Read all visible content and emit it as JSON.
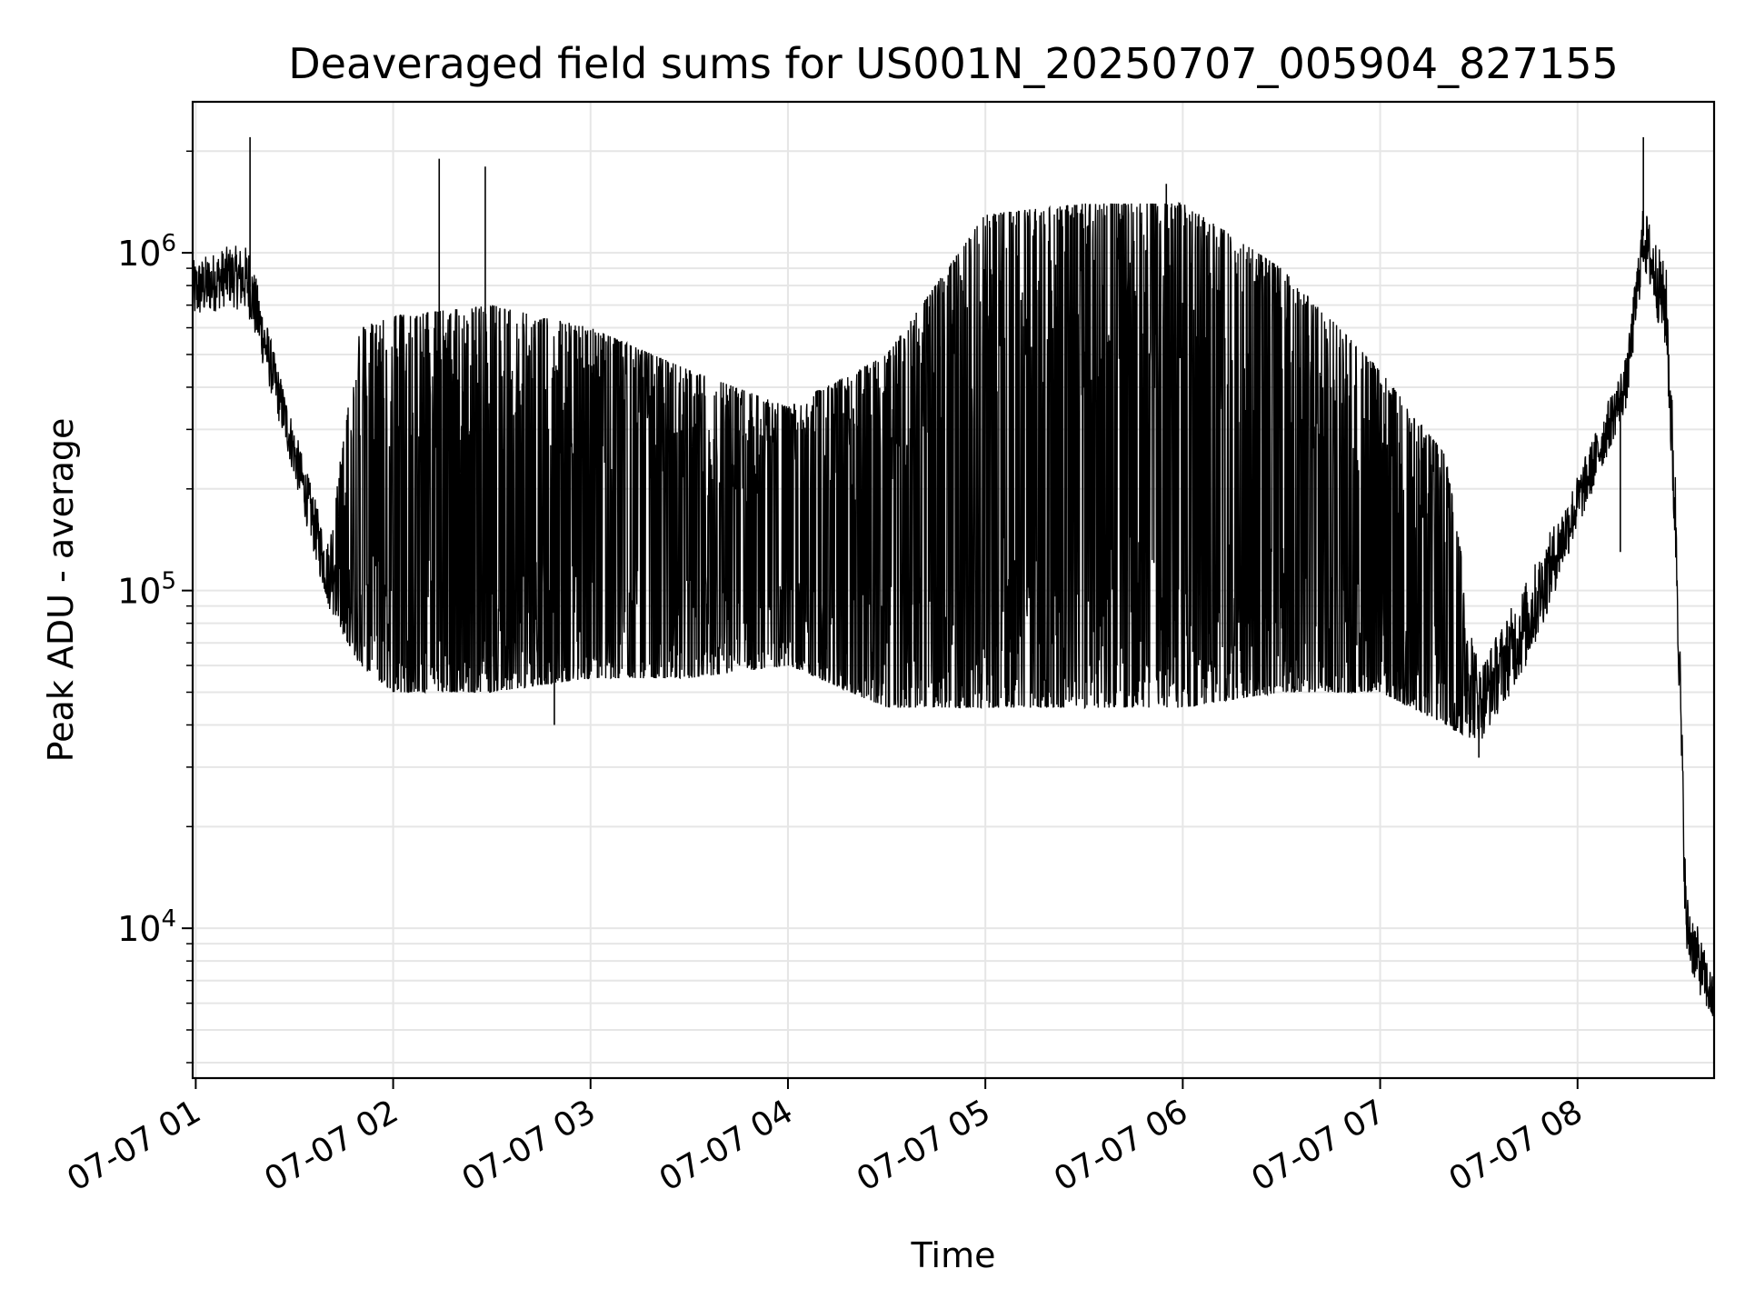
{
  "chart_data": {
    "type": "line",
    "title": "Deaveraged field sums for US001N_20250707_005904_827155",
    "xlabel": "Time",
    "ylabel": "Peak ADU - average",
    "yscale": "log",
    "ylim": [
      3600,
      2800000
    ],
    "xlim": [
      "2025-07-07T00:59:04",
      "2025-07-07T08:41:30"
    ],
    "x_ticks": [
      {
        "label": "07-07 01",
        "t": "2025-07-07T01:00:00"
      },
      {
        "label": "07-07 02",
        "t": "2025-07-07T02:00:00"
      },
      {
        "label": "07-07 03",
        "t": "2025-07-07T03:00:00"
      },
      {
        "label": "07-07 04",
        "t": "2025-07-07T04:00:00"
      },
      {
        "label": "07-07 05",
        "t": "2025-07-07T05:00:00"
      },
      {
        "label": "07-07 06",
        "t": "2025-07-07T06:00:00"
      },
      {
        "label": "07-07 07",
        "t": "2025-07-07T07:00:00"
      },
      {
        "label": "07-07 08",
        "t": "2025-07-07T08:00:00"
      }
    ],
    "y_ticks": [
      {
        "base": "10",
        "exp": "4",
        "value": 10000
      },
      {
        "base": "10",
        "exp": "5",
        "value": 100000
      },
      {
        "base": "10",
        "exp": "6",
        "value": 1000000
      }
    ],
    "grid": true,
    "line_color": "#000000",
    "grid_color": "#e6e6e6",
    "envelope": [
      {
        "t": "2025-07-07T00:59:04",
        "low": 620000,
        "high": 950000
      },
      {
        "t": "2025-07-07T01:10:00",
        "low": 700000,
        "high": 1050000
      },
      {
        "t": "2025-07-07T01:16:00",
        "low": 650000,
        "high": 1050000
      },
      {
        "t": "2025-07-07T01:24:00",
        "low": 350000,
        "high": 500000
      },
      {
        "t": "2025-07-07T01:32:00",
        "low": 180000,
        "high": 260000
      },
      {
        "t": "2025-07-07T01:40:00",
        "low": 90000,
        "high": 140000
      },
      {
        "t": "2025-07-07T01:50:00",
        "low": 60000,
        "high": 600000
      },
      {
        "t": "2025-07-07T02:00:00",
        "low": 50000,
        "high": 650000
      },
      {
        "t": "2025-07-07T02:30:00",
        "low": 50000,
        "high": 700000
      },
      {
        "t": "2025-07-07T03:00:00",
        "low": 55000,
        "high": 600000
      },
      {
        "t": "2025-07-07T03:30:00",
        "low": 55000,
        "high": 450000
      },
      {
        "t": "2025-07-07T04:00:00",
        "low": 60000,
        "high": 350000
      },
      {
        "t": "2025-07-07T04:30:00",
        "low": 45000,
        "high": 500000
      },
      {
        "t": "2025-07-07T05:00:00",
        "low": 45000,
        "high": 1300000
      },
      {
        "t": "2025-07-07T05:30:00",
        "low": 45000,
        "high": 1400000
      },
      {
        "t": "2025-07-07T06:00:00",
        "low": 45000,
        "high": 1400000
      },
      {
        "t": "2025-07-07T06:30:00",
        "low": 50000,
        "high": 900000
      },
      {
        "t": "2025-07-07T07:00:00",
        "low": 50000,
        "high": 450000
      },
      {
        "t": "2025-07-07T07:20:00",
        "low": 40000,
        "high": 250000
      },
      {
        "t": "2025-07-07T07:30:00",
        "low": 35000,
        "high": 60000
      },
      {
        "t": "2025-07-07T07:45:00",
        "low": 60000,
        "high": 110000
      },
      {
        "t": "2025-07-07T08:00:00",
        "low": 150000,
        "high": 220000
      },
      {
        "t": "2025-07-07T08:15:00",
        "low": 350000,
        "high": 500000
      },
      {
        "t": "2025-07-07T08:20:00",
        "low": 900000,
        "high": 1400000
      },
      {
        "t": "2025-07-07T08:27:00",
        "low": 500000,
        "high": 900000
      },
      {
        "t": "2025-07-07T08:30:00",
        "low": 100000,
        "high": 200000
      },
      {
        "t": "2025-07-07T08:33:00",
        "low": 8000,
        "high": 13000
      },
      {
        "t": "2025-07-07T08:41:30",
        "low": 5000,
        "high": 7000
      }
    ],
    "spikes": [
      {
        "t": "2025-07-07T01:16:30",
        "value": 2200000
      },
      {
        "t": "2025-07-07T02:14:00",
        "value": 1900000
      },
      {
        "t": "2025-07-07T02:28:00",
        "value": 1800000
      },
      {
        "t": "2025-07-07T05:55:00",
        "value": 1600000
      },
      {
        "t": "2025-07-07T08:20:00",
        "value": 2200000
      },
      {
        "t": "2025-07-07T02:49:00",
        "value": 40000
      },
      {
        "t": "2025-07-07T07:30:00",
        "value": 32000
      },
      {
        "t": "2025-07-07T08:13:00",
        "value": 130000
      }
    ]
  }
}
